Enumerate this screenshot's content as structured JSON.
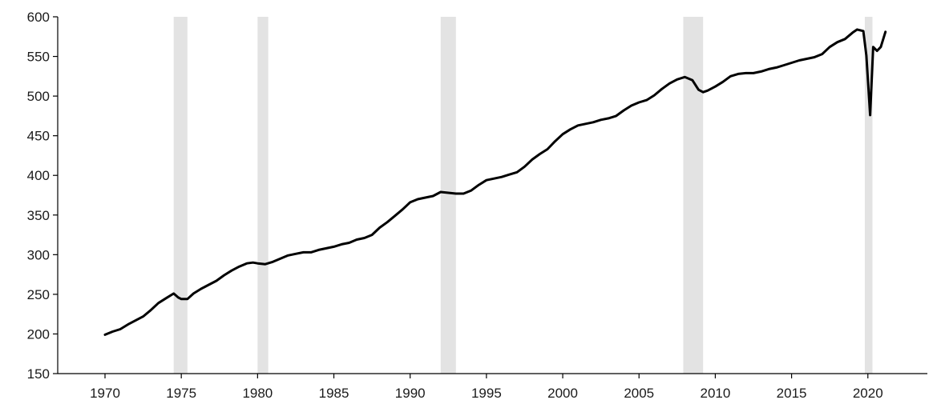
{
  "chart_data": {
    "type": "line",
    "title": "",
    "xlabel": "",
    "ylabel": "",
    "xlim": [
      1966.9,
      1923.9
    ],
    "ylim": [
      150,
      600
    ],
    "x_ticks": [
      "1970",
      "1975",
      "1980",
      "1985",
      "1990",
      "1995",
      "2000",
      "2005",
      "2010",
      "2015",
      "2020"
    ],
    "y_ticks": [
      "150",
      "200",
      "250",
      "300",
      "350",
      "400",
      "450",
      "500",
      "550",
      "600"
    ],
    "grid": false,
    "legend": "none",
    "colors": {
      "line": "#000000",
      "recession": "#e3e3e3",
      "axis": "#000000"
    },
    "recession_bands": [
      {
        "start": 1974.5,
        "end": 1975.4
      },
      {
        "start": 1980.0,
        "end": 1980.7
      },
      {
        "start": 1992.0,
        "end": 1993.0
      },
      {
        "start": 2007.9,
        "end": 2009.2
      },
      {
        "start": 2019.8,
        "end": 2020.3
      }
    ],
    "series": [
      {
        "values": [
          [
            1970.0,
            199
          ],
          [
            1970.5,
            203
          ],
          [
            1971.0,
            206
          ],
          [
            1971.5,
            212
          ],
          [
            1972.0,
            217
          ],
          [
            1972.5,
            222
          ],
          [
            1973.0,
            230
          ],
          [
            1973.5,
            239
          ],
          [
            1974.0,
            245
          ],
          [
            1974.5,
            251
          ],
          [
            1974.8,
            246
          ],
          [
            1975.0,
            244
          ],
          [
            1975.4,
            244
          ],
          [
            1975.8,
            251
          ],
          [
            1976.3,
            257
          ],
          [
            1976.8,
            262
          ],
          [
            1977.3,
            267
          ],
          [
            1977.8,
            274
          ],
          [
            1978.3,
            280
          ],
          [
            1978.8,
            285
          ],
          [
            1979.3,
            289
          ],
          [
            1979.7,
            290
          ],
          [
            1980.0,
            289
          ],
          [
            1980.5,
            288
          ],
          [
            1981.0,
            291
          ],
          [
            1981.5,
            295
          ],
          [
            1982.0,
            299
          ],
          [
            1982.5,
            301
          ],
          [
            1983.0,
            303
          ],
          [
            1983.5,
            303
          ],
          [
            1984.0,
            306
          ],
          [
            1984.5,
            308
          ],
          [
            1985.0,
            310
          ],
          [
            1985.5,
            313
          ],
          [
            1986.0,
            315
          ],
          [
            1986.5,
            319
          ],
          [
            1987.0,
            321
          ],
          [
            1987.5,
            325
          ],
          [
            1988.0,
            334
          ],
          [
            1988.5,
            341
          ],
          [
            1989.0,
            349
          ],
          [
            1989.5,
            357
          ],
          [
            1990.0,
            366
          ],
          [
            1990.5,
            370
          ],
          [
            1991.0,
            372
          ],
          [
            1991.5,
            374
          ],
          [
            1992.0,
            379
          ],
          [
            1992.5,
            378
          ],
          [
            1993.0,
            377
          ],
          [
            1993.5,
            377
          ],
          [
            1994.0,
            381
          ],
          [
            1994.5,
            388
          ],
          [
            1995.0,
            394
          ],
          [
            1995.5,
            396
          ],
          [
            1996.0,
            398
          ],
          [
            1996.5,
            401
          ],
          [
            1997.0,
            404
          ],
          [
            1997.5,
            411
          ],
          [
            1998.0,
            420
          ],
          [
            1998.5,
            427
          ],
          [
            1999.0,
            433
          ],
          [
            1999.5,
            443
          ],
          [
            2000.0,
            452
          ],
          [
            2000.5,
            458
          ],
          [
            2001.0,
            463
          ],
          [
            2001.5,
            465
          ],
          [
            2002.0,
            467
          ],
          [
            2002.5,
            470
          ],
          [
            2003.0,
            472
          ],
          [
            2003.5,
            475
          ],
          [
            2004.0,
            482
          ],
          [
            2004.5,
            488
          ],
          [
            2005.0,
            492
          ],
          [
            2005.5,
            495
          ],
          [
            2006.0,
            501
          ],
          [
            2006.5,
            509
          ],
          [
            2007.0,
            516
          ],
          [
            2007.5,
            521
          ],
          [
            2008.0,
            524
          ],
          [
            2008.5,
            520
          ],
          [
            2008.9,
            508
          ],
          [
            2009.2,
            505
          ],
          [
            2009.5,
            507
          ],
          [
            2010.0,
            512
          ],
          [
            2010.5,
            518
          ],
          [
            2011.0,
            525
          ],
          [
            2011.5,
            528
          ],
          [
            2012.0,
            529
          ],
          [
            2012.5,
            529
          ],
          [
            2013.0,
            531
          ],
          [
            2013.5,
            534
          ],
          [
            2014.0,
            536
          ],
          [
            2014.5,
            539
          ],
          [
            2015.0,
            542
          ],
          [
            2015.5,
            545
          ],
          [
            2016.0,
            547
          ],
          [
            2016.5,
            549
          ],
          [
            2017.0,
            553
          ],
          [
            2017.5,
            562
          ],
          [
            2018.0,
            568
          ],
          [
            2018.5,
            572
          ],
          [
            2019.0,
            580
          ],
          [
            2019.3,
            584
          ],
          [
            2019.7,
            582
          ],
          [
            2019.9,
            551
          ],
          [
            2020.15,
            476
          ],
          [
            2020.35,
            562
          ],
          [
            2020.6,
            557
          ],
          [
            2020.85,
            562
          ],
          [
            2021.15,
            581
          ]
        ]
      }
    ]
  }
}
